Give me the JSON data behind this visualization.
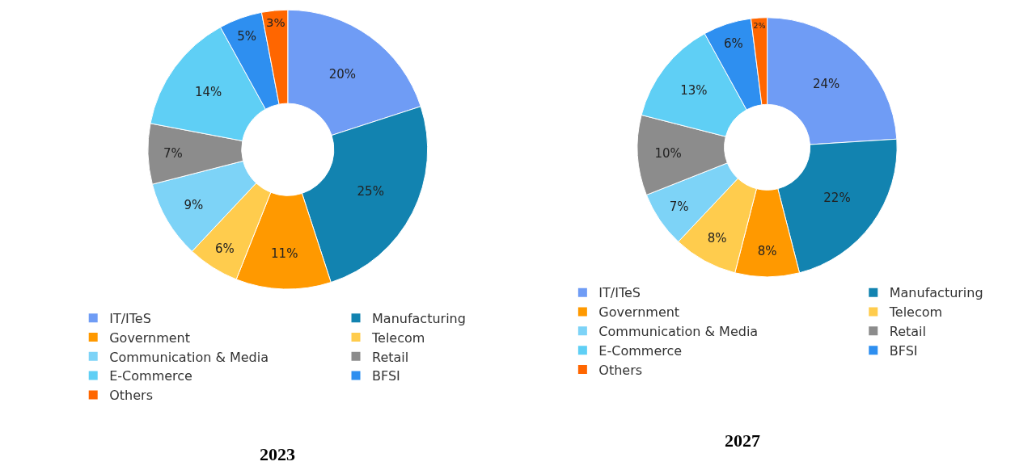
{
  "chart_data": [
    {
      "type": "donut",
      "title": "2023",
      "legend": "bottom",
      "categories": [
        "IT/ITeS",
        "Manufacturing",
        "Government",
        "Telecom",
        "Communication & Media",
        "Retail",
        "E-Commerce",
        "BFSI",
        "Others"
      ],
      "values": [
        20,
        25,
        11,
        6,
        9,
        7,
        14,
        5,
        3
      ],
      "value_labels": [
        "20%",
        "25%",
        "11%",
        "6%",
        "9%",
        "7%",
        "14%",
        "5%",
        "3%"
      ],
      "colors": [
        "#6f9cf5",
        "#1283b0",
        "#ff9900",
        "#ffcc4d",
        "#7dd3f7",
        "#8c8c8c",
        "#5fcff5",
        "#2e8ff0",
        "#ff6600"
      ]
    },
    {
      "type": "donut",
      "title": "2027",
      "legend": "bottom",
      "categories": [
        "IT/ITeS",
        "Manufacturing",
        "Government",
        "Telecom",
        "Communication & Media",
        "Retail",
        "E-Commerce",
        "BFSI",
        "Others"
      ],
      "values": [
        24,
        22,
        8,
        8,
        7,
        10,
        13,
        6,
        2
      ],
      "value_labels": [
        "24%",
        "22%",
        "8%",
        "8%",
        "7%",
        "10%",
        "13%",
        "6%",
        "2%"
      ],
      "colors": [
        "#6f9cf5",
        "#1283b0",
        "#ff9900",
        "#ffcc4d",
        "#7dd3f7",
        "#8c8c8c",
        "#5fcff5",
        "#2e8ff0",
        "#ff6600"
      ]
    }
  ]
}
